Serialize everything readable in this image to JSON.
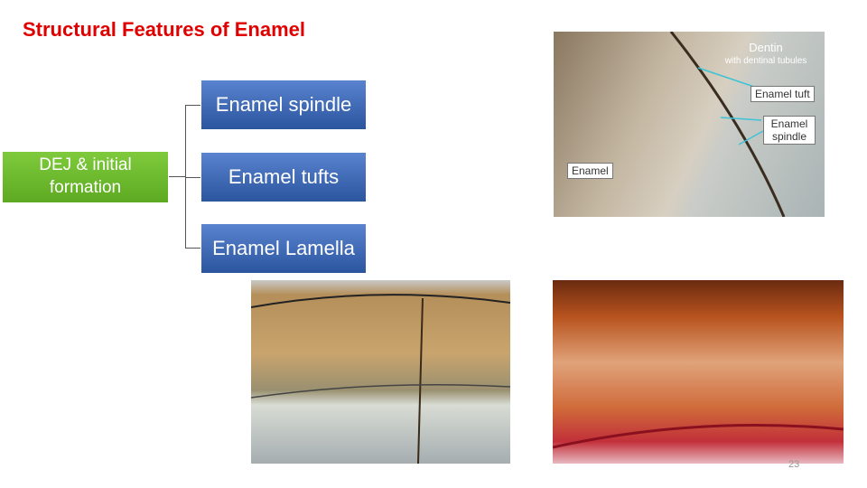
{
  "title": "Structural Features of Enamel",
  "diagram": {
    "root": "DEJ & initial formation",
    "branches": [
      "Enamel spindle",
      "Enamel tufts",
      "Enamel Lamella"
    ]
  },
  "figure": {
    "labels": [
      "Dentin",
      "with dentinal tubules",
      "Enamel tuft",
      "Enamel spindle",
      "Enamel"
    ]
  },
  "page_number": "23"
}
